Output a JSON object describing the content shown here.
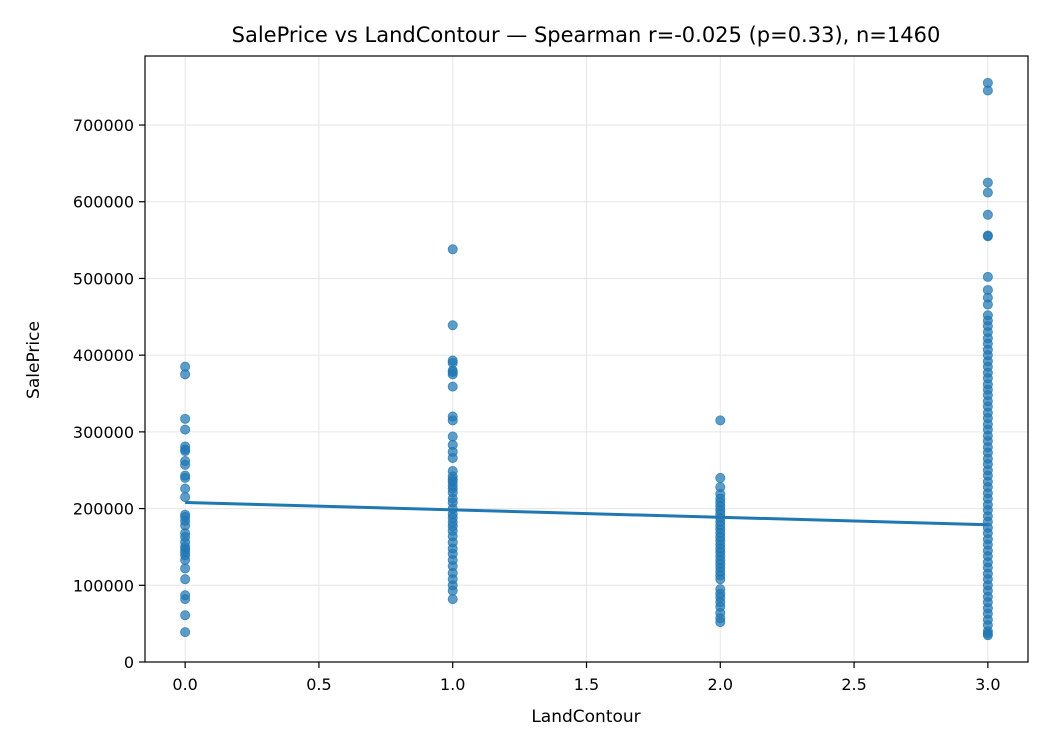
{
  "chart_data": {
    "type": "scatter",
    "title": "SalePrice vs LandContour — Spearman r=-0.025 (p=0.33), n=1460",
    "xlabel": "LandContour",
    "ylabel": "SalePrice",
    "xlim": [
      -0.15,
      3.15
    ],
    "ylim": [
      0,
      790000
    ],
    "xticks": [
      0.0,
      0.5,
      1.0,
      1.5,
      2.0,
      2.5,
      3.0
    ],
    "xtick_labels": [
      "0.0",
      "0.5",
      "1.0",
      "1.5",
      "2.0",
      "2.5",
      "3.0"
    ],
    "yticks": [
      0,
      100000,
      200000,
      300000,
      400000,
      500000,
      600000,
      700000
    ],
    "ytick_labels": [
      "0",
      "100000",
      "200000",
      "300000",
      "400000",
      "500000",
      "600000",
      "700000"
    ],
    "grid": true,
    "point_color": "#1f77b4",
    "line_color": "#1f77b4",
    "series": [
      {
        "x": 0,
        "values": [
          385000,
          375000,
          317000,
          303000,
          281000,
          277000,
          275000,
          262000,
          257000,
          243000,
          240000,
          226000,
          215000,
          192000,
          189000,
          184000,
          178000,
          168000,
          163000,
          156000,
          150000,
          147000,
          143000,
          139000,
          133000,
          122000,
          108000,
          87000,
          82000,
          61000,
          39000
        ]
      },
      {
        "x": 1,
        "values": [
          538000,
          439000,
          393000,
          390000,
          380000,
          378000,
          375000,
          359000,
          320000,
          315000,
          294000,
          283000,
          274000,
          266000,
          249000,
          242000,
          238000,
          235000,
          230000,
          226000,
          221000,
          213000,
          208000,
          200000,
          193000,
          188000,
          182000,
          177000,
          171000,
          164000,
          156000,
          148000,
          141000,
          133000,
          125000,
          116000,
          108000,
          100000,
          93000,
          82000
        ]
      },
      {
        "x": 2,
        "values": [
          315000,
          240000,
          228000,
          219000,
          213000,
          208000,
          203000,
          198000,
          193000,
          188000,
          183000,
          178000,
          173000,
          168000,
          163000,
          158000,
          153000,
          148000,
          143000,
          138000,
          133000,
          128000,
          123000,
          118000,
          113000,
          108000,
          95000,
          89000,
          84000,
          78000,
          72000,
          64000,
          57000,
          52000
        ]
      },
      {
        "x": 3,
        "values": [
          755000,
          745000,
          625000,
          612000,
          583000,
          556000,
          555000,
          502000,
          485000,
          475000,
          466000,
          452000,
          445000,
          438000,
          430000,
          422000,
          415000,
          407000,
          400000,
          392000,
          385000,
          377000,
          370000,
          362000,
          355000,
          348000,
          340000,
          333000,
          325000,
          318000,
          310000,
          303000,
          295000,
          288000,
          280000,
          273000,
          265000,
          258000,
          250000,
          243000,
          235000,
          228000,
          220000,
          213000,
          205000,
          198000,
          190000,
          183000,
          175000,
          168000,
          160000,
          153000,
          145000,
          138000,
          130000,
          123000,
          115000,
          108000,
          100000,
          93000,
          85000,
          78000,
          70000,
          63000,
          55000,
          48000,
          40000,
          37000,
          35000
        ]
      }
    ],
    "trend_line": {
      "x": [
        0,
        3
      ],
      "y": [
        208000,
        179000
      ]
    }
  }
}
